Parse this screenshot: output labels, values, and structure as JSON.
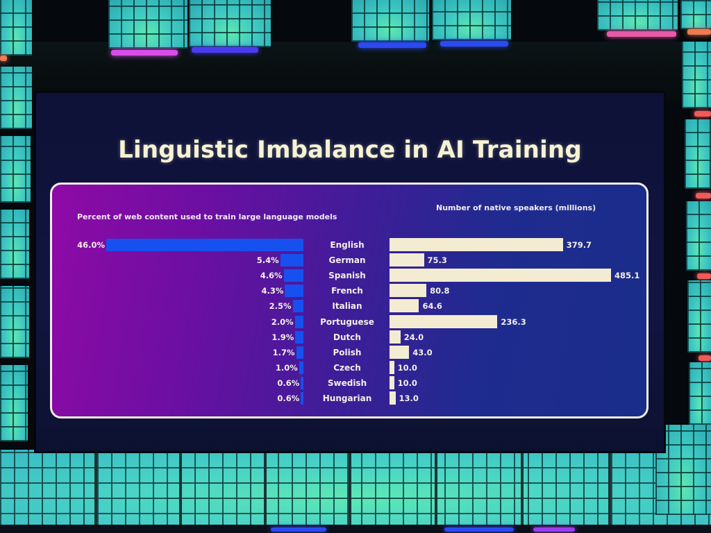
{
  "slide": {
    "title": "Linguistic Imbalance in AI Training",
    "left_subtitle": "Percent of web content used to train large language models",
    "right_subtitle": "Number of native speakers (millions)"
  },
  "colors": {
    "title_text": "#f6f2d4",
    "percent_bar": "#1650ee",
    "speakers_bar": "#f3ecd2",
    "panel_gradient_start": "#8f0aa6",
    "panel_gradient_end": "#1a2d8a",
    "panel_border": "#f1eee8"
  },
  "rows": [
    {
      "language": "English",
      "percent_label": "46.0%",
      "speakers_label": "379.7"
    },
    {
      "language": "German",
      "percent_label": "5.4%",
      "speakers_label": "75.3"
    },
    {
      "language": "Spanish",
      "percent_label": "4.6%",
      "speakers_label": "485.1"
    },
    {
      "language": "French",
      "percent_label": "4.3%",
      "speakers_label": "80.8"
    },
    {
      "language": "Italian",
      "percent_label": "2.5%",
      "speakers_label": "64.6"
    },
    {
      "language": "Portuguese",
      "percent_label": "2.0%",
      "speakers_label": "236.3"
    },
    {
      "language": "Dutch",
      "percent_label": "1.9%",
      "speakers_label": "24.0"
    },
    {
      "language": "Polish",
      "percent_label": "1.7%",
      "speakers_label": "43.0"
    },
    {
      "language": "Czech",
      "percent_label": "1.0%",
      "speakers_label": "10.0"
    },
    {
      "language": "Swedish",
      "percent_label": "0.6%",
      "speakers_label": "10.0"
    },
    {
      "language": "Hungarian",
      "percent_label": "0.6%",
      "speakers_label": "13.0"
    }
  ],
  "chart_data": [
    {
      "type": "bar",
      "orientation": "horizontal",
      "direction": "right-to-left",
      "title": "Percent of web content used to train large language models",
      "categories": [
        "English",
        "German",
        "Spanish",
        "French",
        "Italian",
        "Portuguese",
        "Dutch",
        "Polish",
        "Czech",
        "Swedish",
        "Hungarian"
      ],
      "values": [
        46.0,
        5.4,
        4.6,
        4.3,
        2.5,
        2.0,
        1.9,
        1.7,
        1.0,
        0.6,
        0.6
      ],
      "unit": "%",
      "data_labels": true,
      "grid": false,
      "xlim": [
        0,
        46
      ],
      "color": "#1650ee"
    },
    {
      "type": "bar",
      "orientation": "horizontal",
      "direction": "left-to-right",
      "title": "Number of native speakers (millions)",
      "categories": [
        "English",
        "German",
        "Spanish",
        "French",
        "Italian",
        "Portuguese",
        "Dutch",
        "Polish",
        "Czech",
        "Swedish",
        "Hungarian"
      ],
      "values": [
        379.7,
        75.3,
        485.1,
        80.8,
        64.6,
        236.3,
        24.0,
        43.0,
        10.0,
        10.0,
        13.0
      ],
      "unit": "millions",
      "data_labels": true,
      "grid": false,
      "xlim": [
        0,
        485.1
      ],
      "color": "#f3ecd2"
    }
  ],
  "suptitle": "Linguistic Imbalance in AI Training"
}
